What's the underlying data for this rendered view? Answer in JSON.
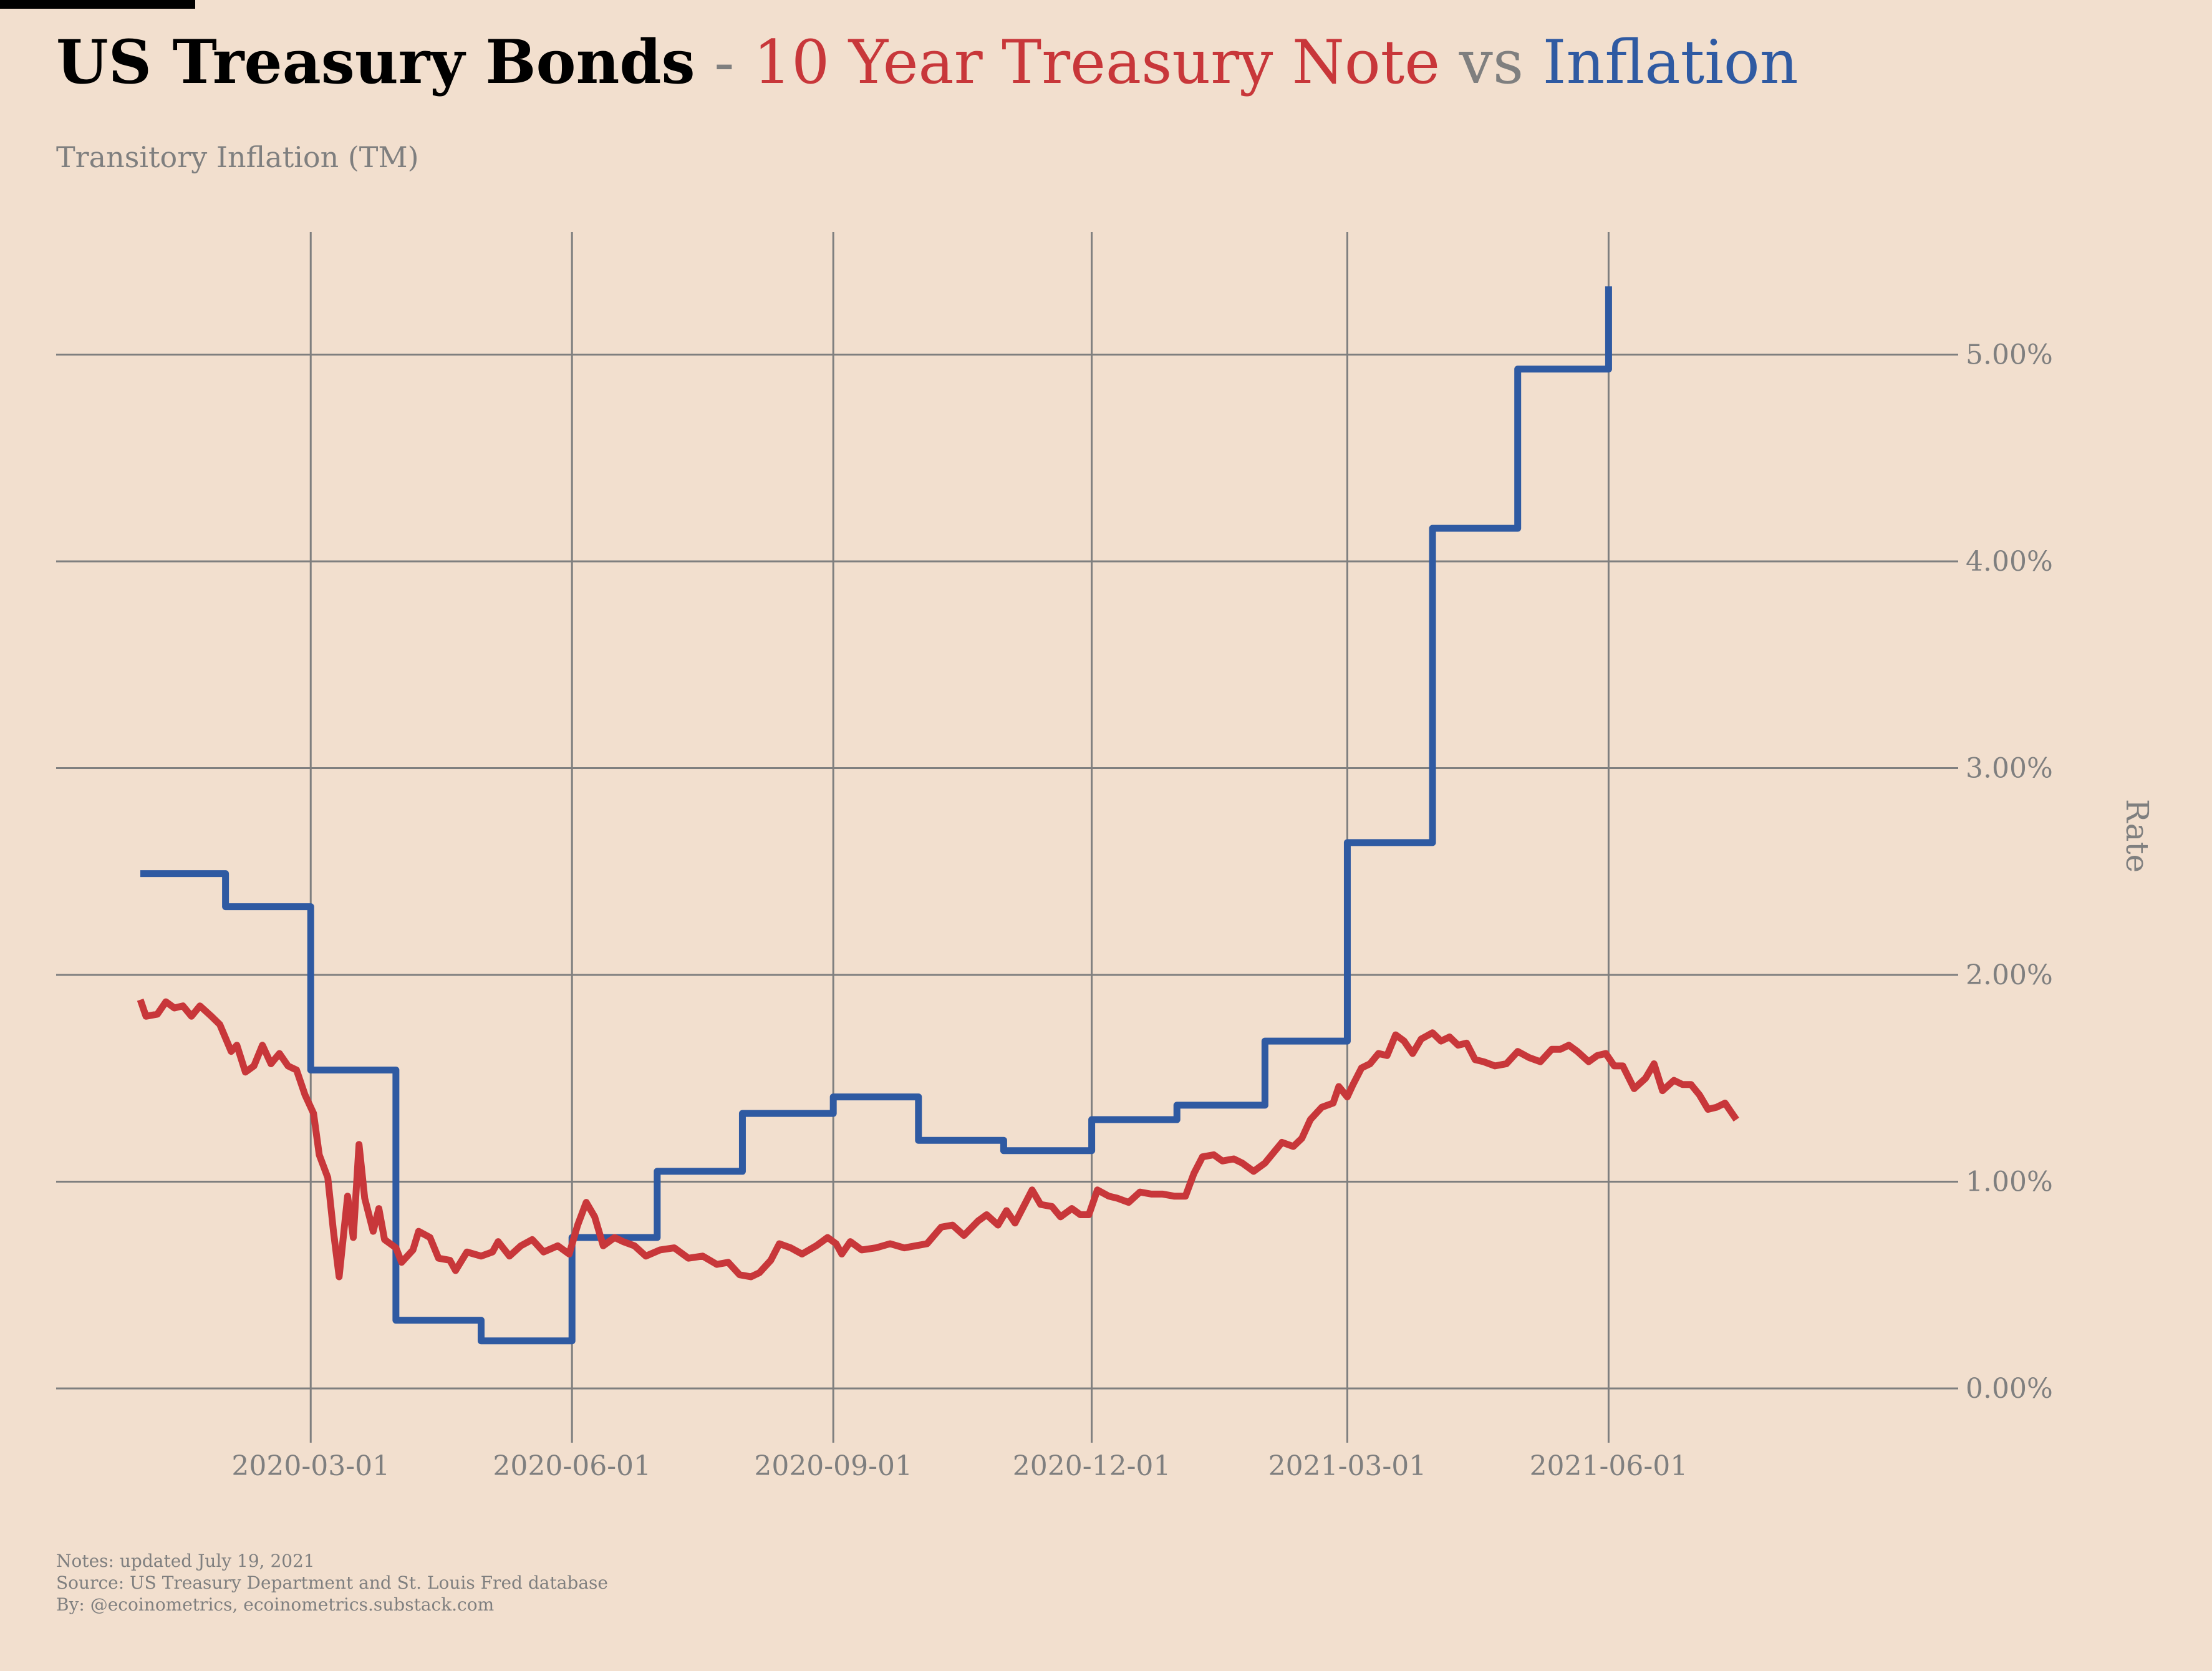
{
  "header": {
    "title_main": "US Treasury Bonds",
    "title_dash": "-",
    "title_series1": "10 Year Treasury Note",
    "title_vs": "vs",
    "title_series2": "Inflation",
    "subtitle": "Transitory Inflation (TM)"
  },
  "footer": {
    "notes": "Notes: updated July 19, 2021",
    "source": "Source: US Treasury Department and St. Louis Fred database",
    "by": "By: @ecoinometrics, ecoinometrics.substack.com"
  },
  "colors": {
    "background": "#f2dfce",
    "treasury": "#c8373a",
    "inflation": "#2f5aa2",
    "grid": "#7f7f7f",
    "muted_text": "#7f7f7f"
  },
  "chart_data": {
    "type": "line",
    "ylabel": "Rate",
    "x_range": [
      "2020-01-01",
      "2021-07-16"
    ],
    "y_range": [
      0,
      0.0533
    ],
    "y_ticks": [
      {
        "value": 0.0,
        "label": "0.00%"
      },
      {
        "value": 0.01,
        "label": "1.00%"
      },
      {
        "value": 0.02,
        "label": "2.00%"
      },
      {
        "value": 0.03,
        "label": "3.00%"
      },
      {
        "value": 0.04,
        "label": "4.00%"
      },
      {
        "value": 0.05,
        "label": "5.00%"
      }
    ],
    "x_ticks": [
      "2020-03-01",
      "2020-06-01",
      "2020-09-01",
      "2020-12-01",
      "2021-03-01",
      "2021-06-01"
    ],
    "y_axis_side": "right",
    "grid": true,
    "series": [
      {
        "key": "inflation",
        "step": true,
        "points": [
          [
            "2020-01-01",
            2.49
          ],
          [
            "2020-01-31",
            2.33
          ],
          [
            "2020-03-01",
            1.54
          ],
          [
            "2020-03-31",
            0.33
          ],
          [
            "2020-04-30",
            0.23
          ],
          [
            "2020-06-01",
            0.73
          ],
          [
            "2020-07-01",
            1.05
          ],
          [
            "2020-07-31",
            1.33
          ],
          [
            "2020-09-01",
            1.41
          ],
          [
            "2020-10-01",
            1.2
          ],
          [
            "2020-10-31",
            1.15
          ],
          [
            "2020-12-01",
            1.3
          ],
          [
            "2020-12-31",
            1.37
          ],
          [
            "2021-01-31",
            1.68
          ],
          [
            "2021-03-01",
            2.64
          ],
          [
            "2021-03-31",
            4.16
          ],
          [
            "2021-04-30",
            4.93
          ],
          [
            "2021-06-01",
            5.33
          ]
        ]
      },
      {
        "key": "treasury",
        "step": false,
        "points": [
          [
            "2020-01-01",
            1.88
          ],
          [
            "2020-01-03",
            1.8
          ],
          [
            "2020-01-07",
            1.81
          ],
          [
            "2020-01-10",
            1.87
          ],
          [
            "2020-01-13",
            1.84
          ],
          [
            "2020-01-16",
            1.85
          ],
          [
            "2020-01-19",
            1.8
          ],
          [
            "2020-01-22",
            1.85
          ],
          [
            "2020-01-26",
            1.8
          ],
          [
            "2020-01-29",
            1.76
          ],
          [
            "2020-02-02",
            1.63
          ],
          [
            "2020-02-04",
            1.66
          ],
          [
            "2020-02-07",
            1.53
          ],
          [
            "2020-02-10",
            1.56
          ],
          [
            "2020-02-13",
            1.66
          ],
          [
            "2020-02-16",
            1.57
          ],
          [
            "2020-02-19",
            1.62
          ],
          [
            "2020-02-22",
            1.56
          ],
          [
            "2020-02-25",
            1.54
          ],
          [
            "2020-02-28",
            1.42
          ],
          [
            "2020-03-02",
            1.33
          ],
          [
            "2020-03-04",
            1.13
          ],
          [
            "2020-03-07",
            1.02
          ],
          [
            "2020-03-09",
            0.76
          ],
          [
            "2020-03-11",
            0.54
          ],
          [
            "2020-03-14",
            0.93
          ],
          [
            "2020-03-16",
            0.73
          ],
          [
            "2020-03-18",
            1.18
          ],
          [
            "2020-03-20",
            0.92
          ],
          [
            "2020-03-23",
            0.76
          ],
          [
            "2020-03-25",
            0.87
          ],
          [
            "2020-03-27",
            0.72
          ],
          [
            "2020-03-31",
            0.68
          ],
          [
            "2020-04-02",
            0.61
          ],
          [
            "2020-04-06",
            0.67
          ],
          [
            "2020-04-08",
            0.76
          ],
          [
            "2020-04-12",
            0.73
          ],
          [
            "2020-04-15",
            0.63
          ],
          [
            "2020-04-19",
            0.62
          ],
          [
            "2020-04-21",
            0.57
          ],
          [
            "2020-04-25",
            0.66
          ],
          [
            "2020-04-30",
            0.64
          ],
          [
            "2020-05-04",
            0.66
          ],
          [
            "2020-05-06",
            0.71
          ],
          [
            "2020-05-10",
            0.64
          ],
          [
            "2020-05-14",
            0.69
          ],
          [
            "2020-05-18",
            0.72
          ],
          [
            "2020-05-22",
            0.66
          ],
          [
            "2020-05-27",
            0.69
          ],
          [
            "2020-05-31",
            0.65
          ],
          [
            "2020-06-03",
            0.79
          ],
          [
            "2020-06-06",
            0.9
          ],
          [
            "2020-06-09",
            0.83
          ],
          [
            "2020-06-12",
            0.69
          ],
          [
            "2020-06-16",
            0.73
          ],
          [
            "2020-06-19",
            0.71
          ],
          [
            "2020-06-23",
            0.69
          ],
          [
            "2020-06-27",
            0.64
          ],
          [
            "2020-07-02",
            0.67
          ],
          [
            "2020-07-07",
            0.68
          ],
          [
            "2020-07-12",
            0.63
          ],
          [
            "2020-07-17",
            0.64
          ],
          [
            "2020-07-22",
            0.6
          ],
          [
            "2020-07-26",
            0.61
          ],
          [
            "2020-07-30",
            0.55
          ],
          [
            "2020-08-03",
            0.54
          ],
          [
            "2020-08-06",
            0.56
          ],
          [
            "2020-08-10",
            0.62
          ],
          [
            "2020-08-13",
            0.7
          ],
          [
            "2020-08-17",
            0.68
          ],
          [
            "2020-08-21",
            0.65
          ],
          [
            "2020-08-26",
            0.69
          ],
          [
            "2020-08-30",
            0.73
          ],
          [
            "2020-09-02",
            0.7
          ],
          [
            "2020-09-04",
            0.65
          ],
          [
            "2020-09-07",
            0.71
          ],
          [
            "2020-09-11",
            0.67
          ],
          [
            "2020-09-16",
            0.68
          ],
          [
            "2020-09-21",
            0.7
          ],
          [
            "2020-09-26",
            0.68
          ],
          [
            "2020-09-30",
            0.69
          ],
          [
            "2020-10-04",
            0.7
          ],
          [
            "2020-10-09",
            0.78
          ],
          [
            "2020-10-13",
            0.79
          ],
          [
            "2020-10-17",
            0.74
          ],
          [
            "2020-10-22",
            0.81
          ],
          [
            "2020-10-25",
            0.84
          ],
          [
            "2020-10-29",
            0.79
          ],
          [
            "2020-11-01",
            0.86
          ],
          [
            "2020-11-04",
            0.8
          ],
          [
            "2020-11-07",
            0.88
          ],
          [
            "2020-11-10",
            0.96
          ],
          [
            "2020-11-13",
            0.89
          ],
          [
            "2020-11-17",
            0.88
          ],
          [
            "2020-11-20",
            0.83
          ],
          [
            "2020-11-24",
            0.87
          ],
          [
            "2020-11-27",
            0.84
          ],
          [
            "2020-11-30",
            0.84
          ],
          [
            "2020-12-03",
            0.96
          ],
          [
            "2020-12-07",
            0.93
          ],
          [
            "2020-12-10",
            0.92
          ],
          [
            "2020-12-14",
            0.9
          ],
          [
            "2020-12-18",
            0.95
          ],
          [
            "2020-12-22",
            0.94
          ],
          [
            "2020-12-26",
            0.94
          ],
          [
            "2020-12-30",
            0.93
          ],
          [
            "2021-01-03",
            0.93
          ],
          [
            "2021-01-06",
            1.04
          ],
          [
            "2021-01-09",
            1.12
          ],
          [
            "2021-01-13",
            1.13
          ],
          [
            "2021-01-16",
            1.1
          ],
          [
            "2021-01-20",
            1.11
          ],
          [
            "2021-01-23",
            1.09
          ],
          [
            "2021-01-27",
            1.05
          ],
          [
            "2021-01-31",
            1.09
          ],
          [
            "2021-02-03",
            1.14
          ],
          [
            "2021-02-06",
            1.19
          ],
          [
            "2021-02-10",
            1.17
          ],
          [
            "2021-02-13",
            1.21
          ],
          [
            "2021-02-16",
            1.3
          ],
          [
            "2021-02-20",
            1.36
          ],
          [
            "2021-02-24",
            1.38
          ],
          [
            "2021-02-26",
            1.46
          ],
          [
            "2021-03-01",
            1.41
          ],
          [
            "2021-03-03",
            1.47
          ],
          [
            "2021-03-06",
            1.55
          ],
          [
            "2021-03-09",
            1.57
          ],
          [
            "2021-03-12",
            1.62
          ],
          [
            "2021-03-15",
            1.61
          ],
          [
            "2021-03-18",
            1.71
          ],
          [
            "2021-03-21",
            1.68
          ],
          [
            "2021-03-24",
            1.62
          ],
          [
            "2021-03-27",
            1.69
          ],
          [
            "2021-03-31",
            1.72
          ],
          [
            "2021-04-03",
            1.68
          ],
          [
            "2021-04-06",
            1.7
          ],
          [
            "2021-04-09",
            1.66
          ],
          [
            "2021-04-12",
            1.67
          ],
          [
            "2021-04-15",
            1.59
          ],
          [
            "2021-04-18",
            1.58
          ],
          [
            "2021-04-22",
            1.56
          ],
          [
            "2021-04-26",
            1.57
          ],
          [
            "2021-04-30",
            1.63
          ],
          [
            "2021-05-04",
            1.6
          ],
          [
            "2021-05-08",
            1.58
          ],
          [
            "2021-05-12",
            1.64
          ],
          [
            "2021-05-15",
            1.64
          ],
          [
            "2021-05-18",
            1.66
          ],
          [
            "2021-05-21",
            1.63
          ],
          [
            "2021-05-25",
            1.58
          ],
          [
            "2021-05-28",
            1.61
          ],
          [
            "2021-05-31",
            1.62
          ],
          [
            "2021-06-03",
            1.56
          ],
          [
            "2021-06-06",
            1.56
          ],
          [
            "2021-06-10",
            1.45
          ],
          [
            "2021-06-14",
            1.5
          ],
          [
            "2021-06-17",
            1.57
          ],
          [
            "2021-06-20",
            1.44
          ],
          [
            "2021-06-24",
            1.49
          ],
          [
            "2021-06-27",
            1.47
          ],
          [
            "2021-06-30",
            1.47
          ],
          [
            "2021-07-03",
            1.42
          ],
          [
            "2021-07-06",
            1.35
          ],
          [
            "2021-07-09",
            1.36
          ],
          [
            "2021-07-12",
            1.38
          ],
          [
            "2021-07-14",
            1.34
          ],
          [
            "2021-07-16",
            1.3
          ]
        ]
      }
    ]
  }
}
